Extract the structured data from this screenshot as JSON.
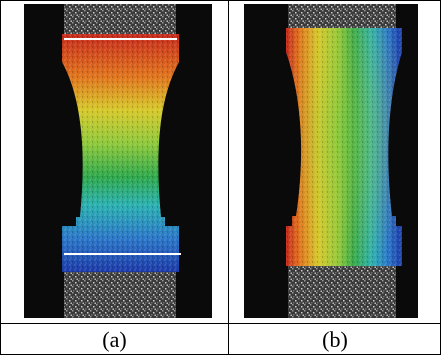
{
  "figure": {
    "panels": [
      {
        "id": "a",
        "caption": "(a)",
        "field": "vertical-gradient",
        "has_marker_lines": true
      },
      {
        "id": "b",
        "caption": "(b)",
        "field": "horizontal-gradient",
        "has_marker_lines": false
      }
    ],
    "colors": {
      "background": "#0a0a0a",
      "speckle": "#2e2e2e",
      "marker_line": "#ffffff",
      "colormap": [
        "#c62a1c",
        "#e0741c",
        "#d6c82a",
        "#8ec83a",
        "#2ea84a",
        "#2ab0b0",
        "#2a76c8",
        "#1c3aa8"
      ]
    }
  }
}
